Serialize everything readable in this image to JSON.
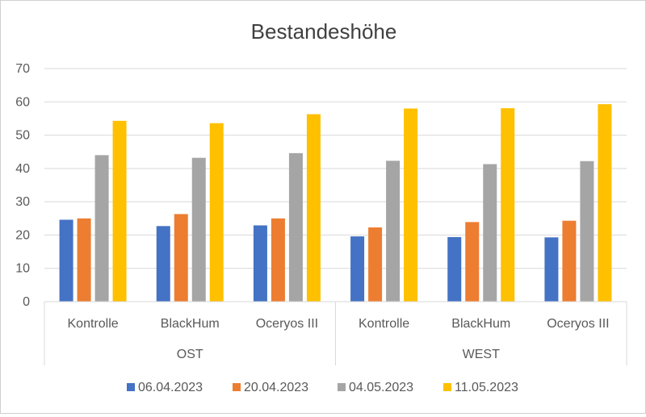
{
  "chart_data": {
    "type": "bar",
    "title": "Bestandeshöhe",
    "xlabel": "",
    "ylabel": "",
    "ylim": [
      0,
      70
    ],
    "yticks": [
      0,
      10,
      20,
      30,
      40,
      50,
      60,
      70
    ],
    "grid": true,
    "legend_position": "bottom",
    "groups": [
      {
        "label": "OST",
        "categories": [
          "Kontrolle",
          "BlackHum",
          "Oceryos III"
        ]
      },
      {
        "label": "WEST",
        "categories": [
          "Kontrolle",
          "BlackHum",
          "Oceryos III"
        ]
      }
    ],
    "categories": [
      "Kontrolle",
      "BlackHum",
      "Oceryos III",
      "Kontrolle",
      "BlackHum",
      "Oceryos III"
    ],
    "series": [
      {
        "name": "06.04.2023",
        "color": "#4472C4",
        "values": [
          24.6,
          22.7,
          22.9,
          19.6,
          19.4,
          19.3
        ]
      },
      {
        "name": "20.04.2023",
        "color": "#ED7D31",
        "values": [
          25.0,
          26.3,
          25.0,
          22.3,
          23.9,
          24.3
        ]
      },
      {
        "name": "04.05.2023",
        "color": "#A5A5A5",
        "values": [
          44.0,
          43.2,
          44.6,
          42.3,
          41.3,
          42.2
        ]
      },
      {
        "name": "11.05.2023",
        "color": "#FFC000",
        "values": [
          54.3,
          53.6,
          56.3,
          58.0,
          58.1,
          59.3
        ]
      }
    ]
  }
}
